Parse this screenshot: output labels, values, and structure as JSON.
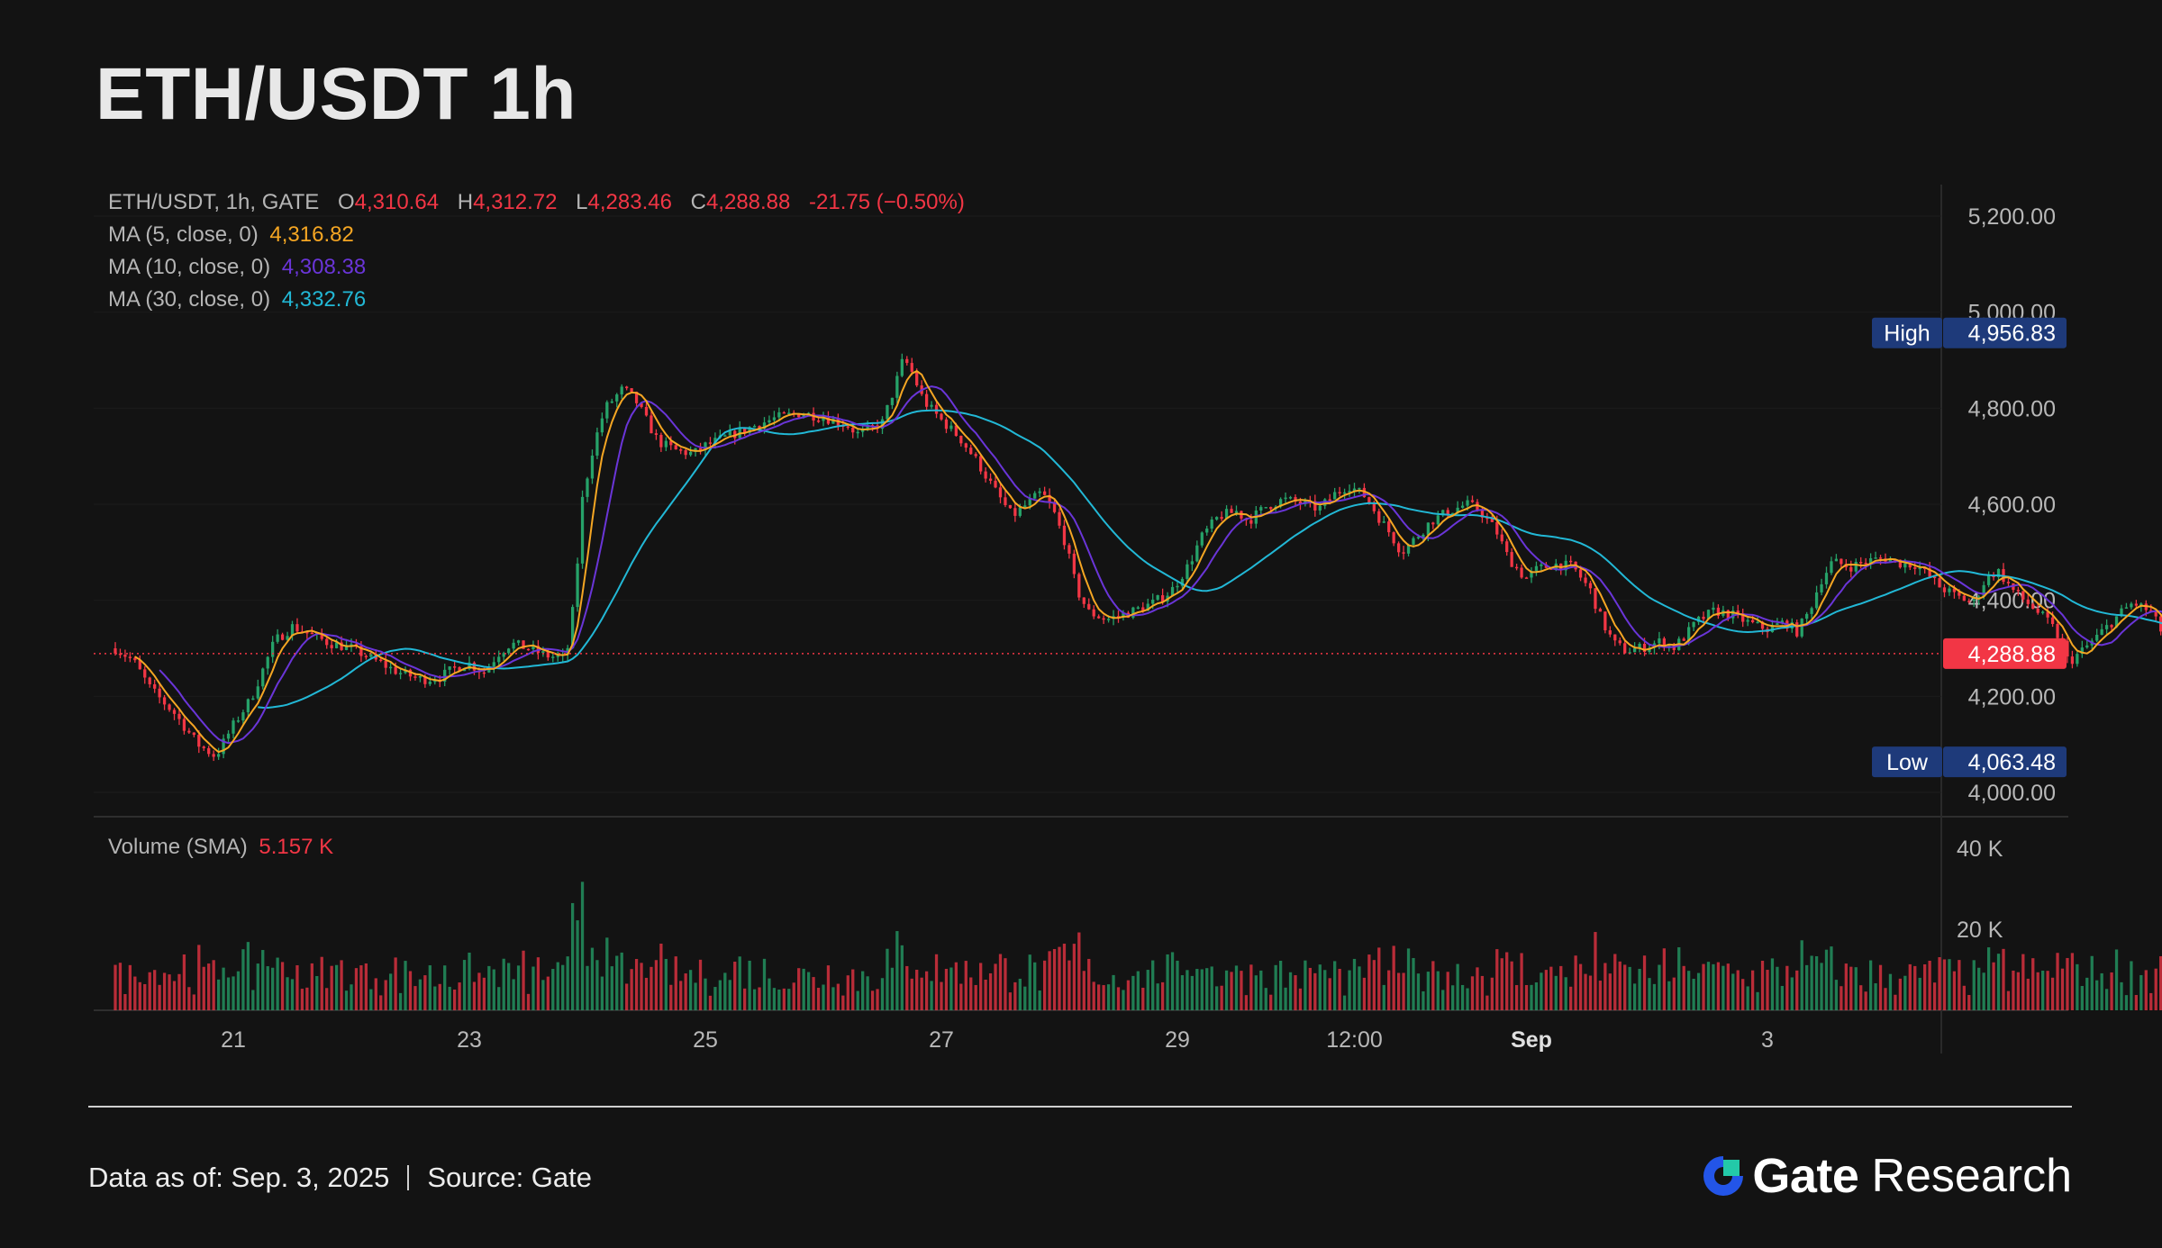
{
  "page_title": "ETH/USDT 1h",
  "legend": {
    "symbol_line": "ETH/USDT, 1h, GATE",
    "open_label": "O",
    "open_value": "4,310.64",
    "high_label": "H",
    "high_value": "4,312.72",
    "low_label": "L",
    "low_value": "4,283.46",
    "close_label": "C",
    "close_value": "4,288.88",
    "change": "-21.75 (−0.50%)",
    "ma5_label": "MA (5, close, 0)",
    "ma5_value": "4,316.82",
    "ma10_label": "MA (10, close, 0)",
    "ma10_value": "4,308.38",
    "ma30_label": "MA (30, close, 0)",
    "ma30_value": "4,332.76",
    "volume_label": "Volume (SMA)",
    "volume_value": "5.157 K"
  },
  "colors": {
    "up": "#26a269",
    "down": "#f23645",
    "ma5": "#f5a623",
    "ma10": "#6a35d8",
    "ma30": "#22b8d6",
    "label_bg": "#1e3a7a",
    "last_bg": "#f23645"
  },
  "footer": {
    "data_as_of": "Data as of: Sep. 3, 2025",
    "source": "Source: Gate",
    "brand_name": "Gate",
    "brand_suffix": "Research"
  },
  "chart_data": {
    "type": "candlestick",
    "interval": "1h",
    "price_axis": {
      "ticks": [
        5200,
        5000,
        4800,
        4600,
        4400,
        4200,
        4000
      ],
      "tick_labels": [
        "5,200.00",
        "5,000.00",
        "4,800.00",
        "4,600.00",
        "4,400.00",
        "4,200.00",
        "4,000.00"
      ],
      "range": [
        3960,
        5290
      ]
    },
    "volume_axis": {
      "ticks": [
        40000,
        20000
      ],
      "tick_labels": [
        "40 K",
        "20 K"
      ],
      "range": [
        0,
        42000
      ]
    },
    "x_axis": {
      "start_day": 20.0,
      "end_day": 34.0,
      "tick_labels": [
        {
          "day": 21,
          "label": "21",
          "bold": false
        },
        {
          "day": 23,
          "label": "23",
          "bold": false
        },
        {
          "day": 25,
          "label": "25",
          "bold": false
        },
        {
          "day": 27,
          "label": "27",
          "bold": false
        },
        {
          "day": 29,
          "label": "29",
          "bold": false
        },
        {
          "day": 30.5,
          "label": "12:00",
          "bold": false
        },
        {
          "day": 32,
          "label": "Sep",
          "bold": true
        },
        {
          "day": 34,
          "label": "3",
          "bold": false
        }
      ]
    },
    "markers": {
      "high_label": "High",
      "high_value": 4956.83,
      "high_text": "4,956.83",
      "low_label": "Low",
      "low_value": 4063.48,
      "low_text": "4,063.48",
      "last_value": 4288.88,
      "last_text": "4,288.88"
    },
    "price_path": [
      [
        20.0,
        4300
      ],
      [
        20.15,
        4275
      ],
      [
        20.3,
        4215
      ],
      [
        20.5,
        4165
      ],
      [
        20.7,
        4100
      ],
      [
        20.85,
        4075
      ],
      [
        21.0,
        4140
      ],
      [
        21.15,
        4195
      ],
      [
        21.25,
        4255
      ],
      [
        21.35,
        4315
      ],
      [
        21.5,
        4345
      ],
      [
        21.65,
        4330
      ],
      [
        21.8,
        4312
      ],
      [
        22.0,
        4300
      ],
      [
        22.2,
        4275
      ],
      [
        22.4,
        4250
      ],
      [
        22.6,
        4235
      ],
      [
        22.75,
        4240
      ],
      [
        22.9,
        4262
      ],
      [
        23.0,
        4268
      ],
      [
        23.12,
        4250
      ],
      [
        23.25,
        4290
      ],
      [
        23.35,
        4310
      ],
      [
        23.5,
        4300
      ],
      [
        23.65,
        4285
      ],
      [
        23.82,
        4278
      ],
      [
        23.9,
        4420
      ],
      [
        23.95,
        4600
      ],
      [
        24.05,
        4720
      ],
      [
        24.15,
        4800
      ],
      [
        24.3,
        4840
      ],
      [
        24.4,
        4820
      ],
      [
        24.5,
        4775
      ],
      [
        24.6,
        4730
      ],
      [
        24.75,
        4712
      ],
      [
        24.9,
        4705
      ],
      [
        25.0,
        4722
      ],
      [
        25.2,
        4742
      ],
      [
        25.4,
        4762
      ],
      [
        25.6,
        4780
      ],
      [
        25.8,
        4790
      ],
      [
        26.0,
        4782
      ],
      [
        26.2,
        4765
      ],
      [
        26.3,
        4745
      ],
      [
        26.5,
        4770
      ],
      [
        26.6,
        4840
      ],
      [
        26.68,
        4905
      ],
      [
        26.75,
        4875
      ],
      [
        26.85,
        4815
      ],
      [
        27.0,
        4775
      ],
      [
        27.15,
        4740
      ],
      [
        27.3,
        4690
      ],
      [
        27.45,
        4630
      ],
      [
        27.6,
        4575
      ],
      [
        27.75,
        4605
      ],
      [
        27.85,
        4625
      ],
      [
        27.95,
        4585
      ],
      [
        28.05,
        4520
      ],
      [
        28.15,
        4420
      ],
      [
        28.25,
        4375
      ],
      [
        28.4,
        4360
      ],
      [
        28.6,
        4375
      ],
      [
        28.8,
        4395
      ],
      [
        28.95,
        4420
      ],
      [
        29.1,
        4475
      ],
      [
        29.2,
        4530
      ],
      [
        29.35,
        4575
      ],
      [
        29.5,
        4585
      ],
      [
        29.6,
        4565
      ],
      [
        29.75,
        4595
      ],
      [
        29.9,
        4610
      ],
      [
        30.05,
        4602
      ],
      [
        30.2,
        4590
      ],
      [
        30.35,
        4625
      ],
      [
        30.45,
        4640
      ],
      [
        30.6,
        4615
      ],
      [
        30.7,
        4575
      ],
      [
        30.8,
        4540
      ],
      [
        30.9,
        4500
      ],
      [
        31.0,
        4525
      ],
      [
        31.15,
        4565
      ],
      [
        31.3,
        4585
      ],
      [
        31.45,
        4600
      ],
      [
        31.55,
        4590
      ],
      [
        31.7,
        4545
      ],
      [
        31.8,
        4490
      ],
      [
        31.95,
        4445
      ],
      [
        32.05,
        4465
      ],
      [
        32.2,
        4475
      ],
      [
        32.35,
        4470
      ],
      [
        32.5,
        4420
      ],
      [
        32.6,
        4355
      ],
      [
        32.7,
        4310
      ],
      [
        32.8,
        4295
      ],
      [
        32.95,
        4302
      ],
      [
        33.1,
        4315
      ],
      [
        33.2,
        4300
      ],
      [
        33.3,
        4325
      ],
      [
        33.4,
        4355
      ],
      [
        33.55,
        4378
      ],
      [
        33.7,
        4370
      ],
      [
        33.85,
        4352
      ],
      [
        34.0,
        4340
      ],
      [
        34.15,
        4355
      ],
      [
        34.25,
        4335
      ],
      [
        34.35,
        4375
      ],
      [
        34.45,
        4440
      ],
      [
        34.55,
        4480
      ],
      [
        34.7,
        4470
      ],
      [
        34.85,
        4482
      ],
      [
        35.0,
        4488
      ],
      [
        35.15,
        4475
      ],
      [
        35.25,
        4475
      ],
      [
        35.35,
        4455
      ],
      [
        35.45,
        4430
      ],
      [
        35.6,
        4408
      ],
      [
        35.75,
        4395
      ],
      [
        35.85,
        4445
      ],
      [
        35.95,
        4462
      ],
      [
        36.1,
        4415
      ],
      [
        36.25,
        4385
      ],
      [
        36.4,
        4350
      ],
      [
        36.5,
        4310
      ],
      [
        36.55,
        4270
      ],
      [
        36.7,
        4302
      ],
      [
        36.85,
        4338
      ],
      [
        37.0,
        4375
      ],
      [
        37.1,
        4395
      ],
      [
        37.25,
        4375
      ],
      [
        37.35,
        4330
      ],
      [
        37.45,
        4305
      ],
      [
        37.6,
        4318
      ],
      [
        37.7,
        4300
      ],
      [
        37.8,
        4288.88
      ]
    ],
    "series": [
      {
        "name": "MA (5, close, 0)",
        "period": 5,
        "last": 4316.82
      },
      {
        "name": "MA (10, close, 0)",
        "period": 10,
        "last": 4308.38
      },
      {
        "name": "MA (30, close, 0)",
        "period": 30,
        "last": 4332.76
      },
      {
        "name": "Volume (SMA)",
        "last": 5157
      }
    ]
  }
}
